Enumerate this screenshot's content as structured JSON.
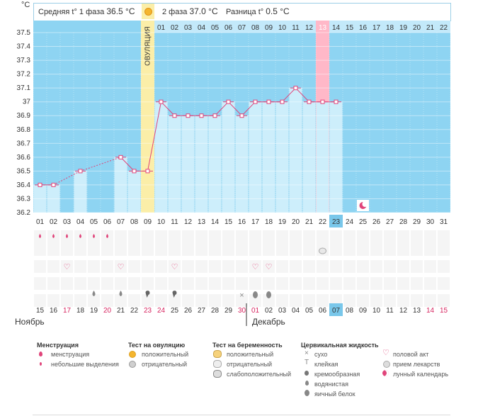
{
  "chart_data": {
    "type": "line",
    "ylabel": "°C",
    "ylim": [
      36.2,
      37.5
    ],
    "yticks": [
      "37.5",
      "37.4",
      "37.3",
      "37.2",
      "37.1",
      "37",
      "36.9",
      "36.8",
      "36.7",
      "36.6",
      "36.5",
      "36.4",
      "36.3",
      "36.2"
    ],
    "cycle_days": [
      "01",
      "02",
      "03",
      "04",
      "05",
      "06",
      "07",
      "08",
      "09",
      "10",
      "11",
      "12",
      "13",
      "14",
      "15",
      "16",
      "17",
      "18",
      "19",
      "20",
      "21",
      "22",
      "23",
      "24",
      "25",
      "26",
      "27",
      "28",
      "29",
      "30",
      "31"
    ],
    "dates": [
      "15",
      "16",
      "17",
      "18",
      "19",
      "20",
      "21",
      "22",
      "23",
      "24",
      "25",
      "26",
      "27",
      "28",
      "29",
      "30",
      "01",
      "02",
      "03",
      "04",
      "05",
      "06",
      "07",
      "08",
      "09",
      "10",
      "11",
      "12",
      "13",
      "14",
      "15"
    ],
    "top_numbers": [
      "01",
      "02",
      "03",
      "04",
      "05",
      "06",
      "07",
      "08",
      "09",
      "10",
      "11",
      "12",
      "13",
      "14",
      "15",
      "16",
      "17",
      "18",
      "19",
      "20",
      "21",
      "22"
    ],
    "temps": [
      36.4,
      36.4,
      null,
      36.5,
      null,
      null,
      36.6,
      36.5,
      36.5,
      37.0,
      36.9,
      36.9,
      36.9,
      36.9,
      37.0,
      36.9,
      37.0,
      37.0,
      37.0,
      37.1,
      37.0,
      37.0,
      37.0
    ],
    "months": {
      "left": "Ноябрь",
      "right": "Декабрь"
    },
    "ovulation_label": "ОВУЛЯЦИЯ",
    "highlight_cycle_day": "23",
    "highlight_date": "07"
  },
  "header": {
    "phase1_label": "Средняя t° 1 фаза",
    "phase1_value": "36.5 °C",
    "phase2_label": "2 фаза",
    "phase2_value": "37.0 °C",
    "diff_label": "Разница t°",
    "diff_value": "0.5 °C"
  },
  "legend": {
    "menstruation": {
      "title": "Менструация",
      "items": [
        "менструация",
        "небольшие выделения"
      ]
    },
    "ovulation_test": {
      "title": "Тест на овуляцию",
      "items": [
        "положительный",
        "отрицательный"
      ]
    },
    "pregnancy_test": {
      "title": "Тест на беременность",
      "items": [
        "положительный",
        "отрицательный",
        "слабоположительный"
      ]
    },
    "cervical_fluid": {
      "title": "Цервикальная жидкость",
      "items": [
        "сухо",
        "клейкая",
        "кремообразная",
        "водянистая",
        "яичный белок"
      ]
    },
    "other": {
      "items": [
        "половой акт",
        "прием лекарств",
        "лунный календарь"
      ]
    }
  },
  "colors": {
    "band": "#8ed4f2",
    "bar": "#cdeefb",
    "line": "#e0447a",
    "ovulation": "#fbeea8",
    "today": "#ffb8c8",
    "red_date": "#d6245f"
  }
}
